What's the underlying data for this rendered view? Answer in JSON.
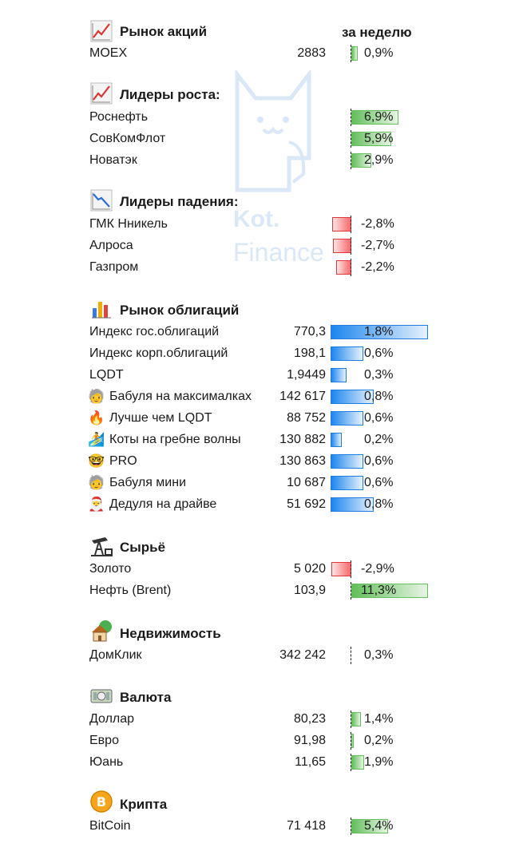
{
  "header": {
    "week_label": "за неделю"
  },
  "watermark": {
    "line1": "Kot.",
    "line2": "Finance"
  },
  "sections": {
    "stocks": {
      "title": "Рынок акций",
      "icon": "chart-up-icon",
      "rows": [
        {
          "name": "MOEX",
          "value": "2883",
          "change": "0,9%",
          "change_num": 0.9
        }
      ]
    },
    "gainers": {
      "title": "Лидеры роста:",
      "icon": "chart-up-icon",
      "rows": [
        {
          "name": "Роснефть",
          "change": "6,9%",
          "change_num": 6.9
        },
        {
          "name": "СовКомФлот",
          "change": "5,9%",
          "change_num": 5.9
        },
        {
          "name": "Новатэк",
          "change": "2,9%",
          "change_num": 2.9
        }
      ]
    },
    "losers": {
      "title": "Лидеры падения:",
      "icon": "chart-down-icon",
      "rows": [
        {
          "name": "ГМК Нникель",
          "change": "-2,8%",
          "change_num": -2.8
        },
        {
          "name": "Алроса",
          "change": "-2,7%",
          "change_num": -2.7
        },
        {
          "name": "Газпром",
          "change": "-2,2%",
          "change_num": -2.2
        }
      ]
    },
    "bonds": {
      "title": "Рынок облигаций",
      "icon": "bar-chart-icon",
      "rows": [
        {
          "name": "Индекс гос.облигаций",
          "value": "770,3",
          "change": "1,8%",
          "change_num": 1.8
        },
        {
          "name": "Индекс корп.облигаций",
          "value": "198,1",
          "change": "0,6%",
          "change_num": 0.6
        },
        {
          "name": "LQDT",
          "value": "1,9449",
          "change": "0,3%",
          "change_num": 0.3
        },
        {
          "name": "Бабуля на максималках",
          "value": "142 617",
          "change": "0,8%",
          "change_num": 0.8,
          "emoji": "🧓"
        },
        {
          "name": "Лучше чем LQDT",
          "value": "88 752",
          "change": "0,6%",
          "change_num": 0.6,
          "emoji": "🔥"
        },
        {
          "name": "Коты на гребне волны",
          "value": "130 882",
          "change": "0,2%",
          "change_num": 0.2,
          "emoji": "🏄"
        },
        {
          "name": "PRO",
          "value": "130 863",
          "change": "0,6%",
          "change_num": 0.6,
          "emoji": "🤓"
        },
        {
          "name": "Бабуля мини",
          "value": "10 687",
          "change": "0,6%",
          "change_num": 0.6,
          "emoji": "🧓"
        },
        {
          "name": "Дедуля на драйве",
          "value": "51 692",
          "change": "0,8%",
          "change_num": 0.8,
          "emoji": "🎅"
        }
      ]
    },
    "commodities": {
      "title": "Сырьё",
      "icon": "oil-pump-icon",
      "rows": [
        {
          "name": "Золото",
          "value": "5 020",
          "change": "-2,9%",
          "change_num": -2.9
        },
        {
          "name": "Нефть (Brent)",
          "value": "103,9",
          "change": "11,3%",
          "change_num": 11.3
        }
      ]
    },
    "realty": {
      "title": "Недвижимость",
      "icon": "house-icon",
      "rows": [
        {
          "name": "ДомКлик",
          "value": "342 242",
          "change": "0,3%",
          "change_num": 0.3
        }
      ]
    },
    "currency": {
      "title": "Валюта",
      "icon": "banknote-icon",
      "rows": [
        {
          "name": "Доллар",
          "value": "80,23",
          "change": "1,4%",
          "change_num": 1.4
        },
        {
          "name": "Евро",
          "value": "91,98",
          "change": "0,2%",
          "change_num": 0.2
        },
        {
          "name": "Юань",
          "value": "11,65",
          "change": "1,9%",
          "change_num": 1.9
        }
      ]
    },
    "crypto": {
      "title": "Крипта",
      "icon": "bitcoin-icon",
      "rows": [
        {
          "name": "BitCoin",
          "value": "71 418",
          "change": "5,4%",
          "change_num": 5.4
        }
      ]
    }
  }
}
